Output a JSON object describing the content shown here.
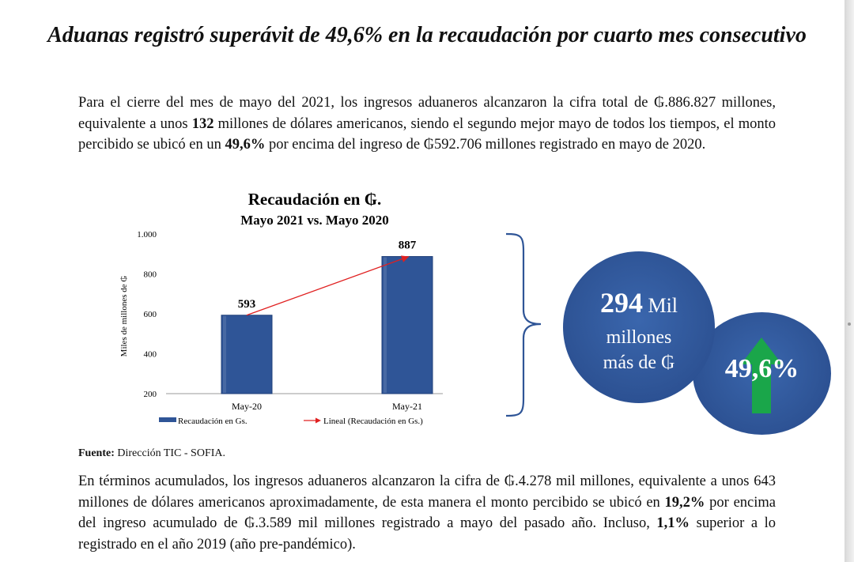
{
  "title": "Aduanas registró superávit de 49,6% en la recaudación por cuarto mes consecutivo",
  "paragraph1": {
    "a": "Para el cierre del mes de mayo del 2021, los ingresos aduaneros alcanzaron la cifra total de ₲.886.827 millones, equivalente a unos ",
    "b": "132",
    "c": " millones de dólares americanos, siendo el segundo mejor mayo de todos los tiempos, el monto percibido se ubicó en un ",
    "d": "49,6%",
    "e": " por encima del ingreso de ₲592.706 millones registrado en mayo de 2020."
  },
  "source": {
    "label": "Fuente:",
    "text": " Dirección TIC - SOFIA."
  },
  "paragraph2": {
    "a": "En términos acumulados, los ingresos aduaneros alcanzaron la cifra de ₲.4.278 mil millones, equivalente a unos 643 millones de dólares americanos aproximadamente, de esta manera el monto percibido se ubicó en ",
    "b": "19,2%",
    "c": " por encima del ingreso acumulado de ₲.3.589 mil millones registrado a mayo del pasado año. Incluso, ",
    "d": "1,1%",
    "e": " superior a lo registrado en el año 2019 (año pre-pandémico)."
  },
  "highlight": {
    "number": "294",
    "unit": " Mil",
    "line2": "millones",
    "line3": "más de ₲",
    "percent": "49,6%"
  },
  "colors": {
    "bar": "#2f5597",
    "trend": "#e02020",
    "brace": "#2f5597",
    "circle": "#2f5597",
    "arrow": "#1aa64a"
  },
  "chart_data": {
    "type": "bar",
    "title": "Recaudación en ₲.",
    "subtitle": "Mayo 2021 vs. Mayo 2020",
    "categories": [
      "May-20",
      "May-21"
    ],
    "values": [
      593,
      887
    ],
    "data_labels": [
      "593",
      "887"
    ],
    "ylabel": "Miles de millones de ₲",
    "ylim": [
      200,
      1000
    ],
    "yticks": [
      200,
      400,
      600,
      800,
      1000
    ],
    "ytick_labels": [
      "200",
      "400",
      "600",
      "800",
      "1.000"
    ],
    "grid": false,
    "legend_position": "bottom",
    "series": [
      {
        "name": "Recaudación en Gs.",
        "type": "bar",
        "values": [
          593,
          887
        ]
      },
      {
        "name": "Lineal (Recaudación en Gs.)",
        "type": "trendline",
        "values": [
          593,
          887
        ]
      }
    ]
  }
}
